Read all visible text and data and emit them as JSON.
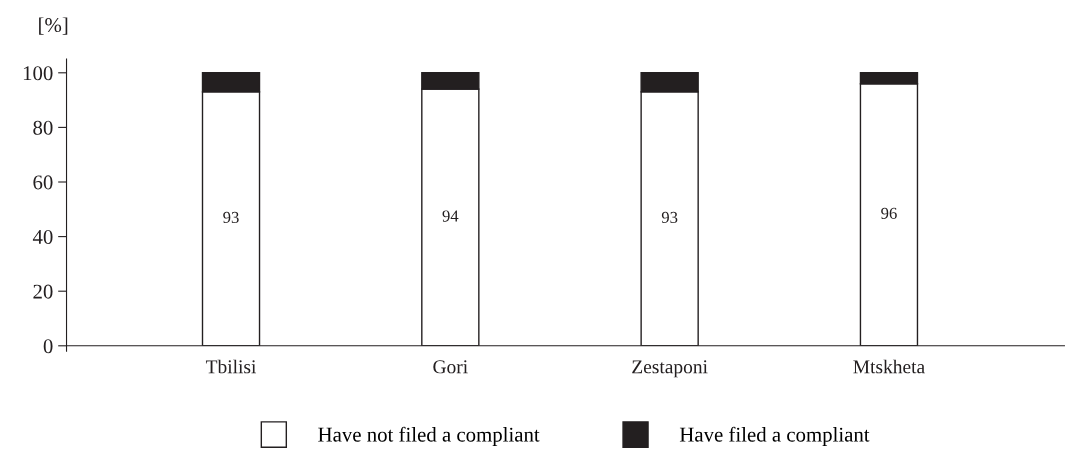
{
  "chart_data": {
    "type": "bar",
    "stacked": true,
    "ylabel": "[%]",
    "categories": [
      "Tbilisi",
      "Gori",
      "Zestaponi",
      "Mtskheta"
    ],
    "series": [
      {
        "name": "Have not filed a compliant",
        "color": "#ffffff",
        "values": [
          93,
          94,
          93,
          96
        ],
        "value_labels": [
          "93",
          "94",
          "93",
          "96"
        ]
      },
      {
        "name": "Have filed a compliant",
        "color": "#231f20",
        "values": [
          7,
          6,
          7,
          4
        ]
      }
    ],
    "ylim": [
      0,
      105
    ],
    "yticks": [
      0,
      20,
      40,
      60,
      80,
      100
    ],
    "grid": false,
    "legend": "bottom"
  }
}
